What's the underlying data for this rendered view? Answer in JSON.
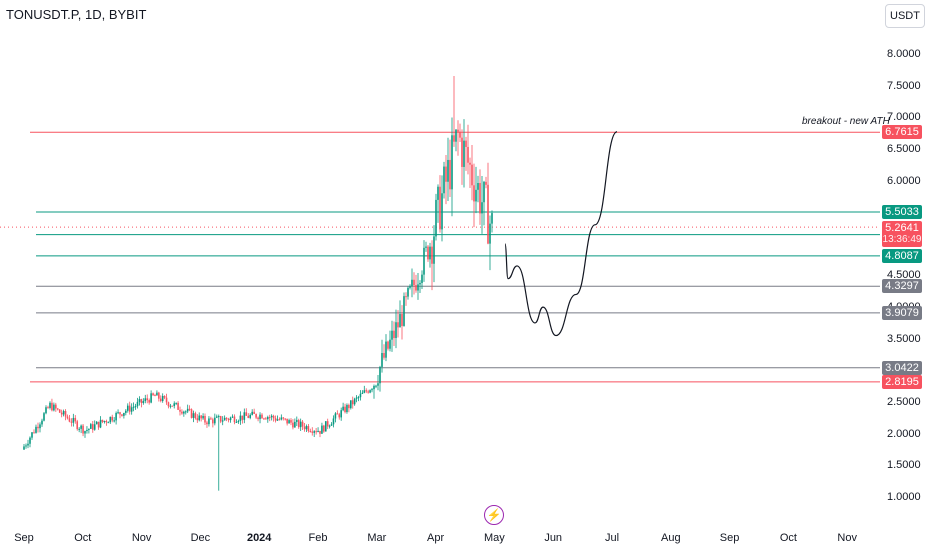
{
  "header": {
    "symbol": "TONUSDT.P, 1D, BYBIT",
    "currency": "USDT"
  },
  "y_axis": {
    "min": 0.8,
    "max": 8.2,
    "ticks": [
      "8.0000",
      "7.5000",
      "7.0000",
      "6.5000",
      "6.0000",
      "4.5000",
      "4.0000",
      "3.5000",
      "2.5000",
      "2.0000",
      "1.5000",
      "1.0000"
    ]
  },
  "x_axis": {
    "labels": [
      {
        "text": "Sep",
        "bold": false
      },
      {
        "text": "Oct",
        "bold": false
      },
      {
        "text": "Nov",
        "bold": false
      },
      {
        "text": "Dec",
        "bold": false
      },
      {
        "text": "2024",
        "bold": true
      },
      {
        "text": "Feb",
        "bold": false
      },
      {
        "text": "Mar",
        "bold": false
      },
      {
        "text": "Apr",
        "bold": false
      },
      {
        "text": "May",
        "bold": false
      },
      {
        "text": "Jun",
        "bold": false
      },
      {
        "text": "Jul",
        "bold": false
      },
      {
        "text": "Aug",
        "bold": false
      },
      {
        "text": "Sep",
        "bold": false
      },
      {
        "text": "Oct",
        "bold": false
      },
      {
        "text": "Nov",
        "bold": false
      }
    ]
  },
  "levels": [
    {
      "value": 6.7615,
      "label": "6.7615",
      "color": "#f7525f",
      "style": "red"
    },
    {
      "value": 5.5033,
      "label": "5.5033",
      "color": "#089981",
      "style": "green"
    },
    {
      "value": 5.144,
      "label": "5.1440",
      "color": "#089981",
      "style": "green"
    },
    {
      "value": 4.8087,
      "label": "4.8087",
      "color": "#089981",
      "style": "green"
    },
    {
      "value": 4.3297,
      "label": "4.3297",
      "color": "#787b86",
      "style": "gray"
    },
    {
      "value": 3.9079,
      "label": "3.9079",
      "color": "#787b86",
      "style": "gray"
    },
    {
      "value": 3.0422,
      "label": "3.0422",
      "color": "#787b86",
      "style": "gray"
    },
    {
      "value": 2.8195,
      "label": "2.8195",
      "color": "#f7525f",
      "style": "red"
    }
  ],
  "current_price": {
    "value": 5.2641,
    "label": "5.2641",
    "countdown": "13:36:49",
    "color": "#f7525f"
  },
  "annotation": "breakout - new ATH",
  "colors": {
    "up": "#089981",
    "down": "#f7525f",
    "projection": "#131722"
  },
  "icons": {
    "logo": "lightning-icon"
  },
  "chart_data": {
    "type": "candlestick",
    "title": "TONUSDT.P, 1D, BYBIT",
    "x_range": [
      "Sep",
      "Nov"
    ],
    "ylim": [
      0.8,
      8.2
    ],
    "anchors": [
      {
        "month": "Sep",
        "close": 1.75
      },
      {
        "month": "Sep-mid",
        "close": 2.45
      },
      {
        "month": "Oct",
        "close": 2.05
      },
      {
        "month": "Nov",
        "close": 2.6
      },
      {
        "month": "Dec",
        "close": 2.2
      },
      {
        "month": "2024",
        "close": 2.3
      },
      {
        "month": "Feb",
        "close": 2.05
      },
      {
        "month": "Mar",
        "close": 2.75
      },
      {
        "month": "Mar-mid",
        "close": 3.8
      },
      {
        "month": "Apr",
        "close": 5.0
      },
      {
        "month": "Apr-mid",
        "close": 6.7
      },
      {
        "month": "May",
        "close": 5.26
      }
    ],
    "notable": {
      "high": 7.65,
      "low_wick": 1.1
    },
    "projection": [
      {
        "month": "May",
        "value": 5.0
      },
      {
        "month": "May",
        "value": 4.45
      },
      {
        "month": "May",
        "value": 4.65
      },
      {
        "month": "May-late",
        "value": 3.75
      },
      {
        "month": "Jun",
        "value": 4.0
      },
      {
        "month": "Jun",
        "value": 3.55
      },
      {
        "month": "Jun-mid",
        "value": 4.2
      },
      {
        "month": "Jun-late",
        "value": 5.3
      },
      {
        "month": "Jul",
        "value": 6.77
      }
    ]
  }
}
